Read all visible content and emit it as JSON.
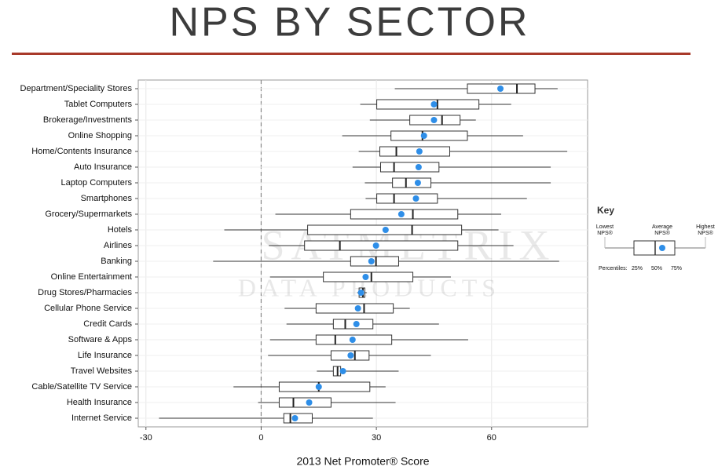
{
  "chart_data": {
    "type": "box",
    "title": "NPS BY SECTOR",
    "x_label": "2013 Net Promoter® Score",
    "categories": [
      "Department/Speciality Stores",
      "Tablet Computers",
      "Brokerage/Investments",
      "Online Shopping",
      "Home/Contents Insurance",
      "Auto Insurance",
      "Laptop Computers",
      "Smartphones",
      "Grocery/Supermarkets",
      "Hotels",
      "Airlines",
      "Banking",
      "Online Entertainment",
      "Drug Stores/Pharmacies",
      "Cellular Phone Service",
      "Credit Cards",
      "Software & Apps",
      "Life Insurance",
      "Travel Websites",
      "Cable/Satellite TV Service",
      "Health Insurance",
      "Internet Service"
    ],
    "min": [
      34.8,
      25.8,
      28.3,
      21.1,
      25.4,
      23.8,
      27,
      27.2,
      3.7,
      -9.6,
      2,
      -12.5,
      2.3,
      25,
      6.1,
      6.6,
      2.3,
      1.8,
      14.5,
      -7.2,
      -0.8,
      -26.6
    ],
    "q1": [
      53.7,
      30.1,
      38.7,
      33.8,
      30.9,
      31.1,
      34.2,
      30.1,
      23.3,
      12.1,
      11.3,
      23.3,
      16.2,
      25.5,
      14.3,
      18.8,
      14.3,
      18.2,
      18.8,
      4.7,
      4.7,
      5.9
    ],
    "median": [
      66.6,
      45.9,
      47.1,
      42,
      35.2,
      34.6,
      37.7,
      34.6,
      39.5,
      39.3,
      20.5,
      29.9,
      28.7,
      26.5,
      26.8,
      21.9,
      19.3,
      24.4,
      19.9,
      15,
      8.4,
      7.6
    ],
    "q3": [
      71.3,
      56.7,
      51.8,
      53.7,
      49.1,
      46.3,
      44.2,
      45.9,
      51.2,
      52.2,
      51.2,
      35.8,
      39.5,
      27,
      34.4,
      29.1,
      34,
      28.1,
      20.7,
      28.3,
      18.2,
      13.3
    ],
    "max": [
      77.2,
      65.1,
      55.9,
      68.2,
      79.7,
      75.4,
      75.4,
      69.2,
      62.5,
      61.8,
      65.7,
      77.6,
      49.4,
      27.5,
      38.7,
      46.3,
      53.9,
      44.2,
      35.8,
      32.4,
      35,
      29.1
    ],
    "mean": [
      62.3,
      45,
      45,
      42.4,
      41.2,
      41,
      40.8,
      40.3,
      36.5,
      32.4,
      29.9,
      28.7,
      27.2,
      26,
      25.2,
      24.8,
      23.8,
      23.3,
      21.3,
      15,
      12.5,
      8.8
    ],
    "mean_color": "#2e8ee8",
    "xlim": [
      -32,
      85
    ],
    "xticks": [
      -30,
      0,
      30,
      60
    ],
    "ref_line": 0,
    "grid": true
  },
  "watermark": [
    "SATMETRIX",
    "DATA PRODUCTS"
  ],
  "key": {
    "title": "Key",
    "lowest": [
      "Lowest",
      "NPS®"
    ],
    "average": [
      "Average",
      "NPS®"
    ],
    "highest": [
      "Highest",
      "NPS®"
    ],
    "percentiles": "Percentiles:",
    "p25": "25%",
    "p50": "50%",
    "p75": "75%"
  }
}
